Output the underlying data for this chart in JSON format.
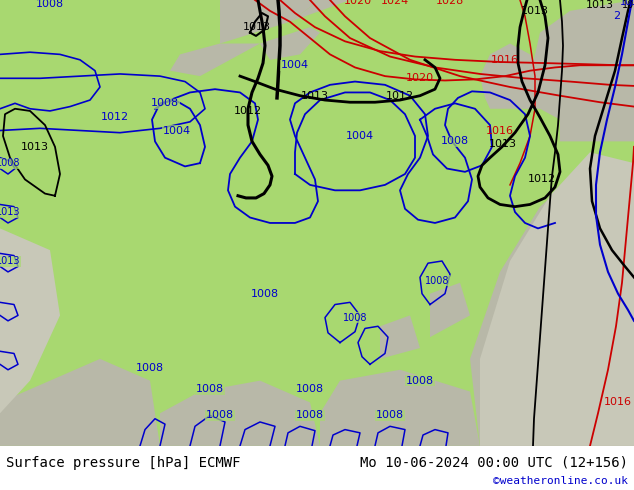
{
  "title_left": "Surface pressure [hPa] ECMWF",
  "title_right": "Mo 10-06-2024 00:00 UTC (12+156)",
  "copyright": "©weatheronline.co.uk",
  "bg_green": "#a8d870",
  "bg_gray": "#b8b8a8",
  "bg_lightgray": "#c8c8b8",
  "sea_gray": "#c0c8c0",
  "blue_col": "#0000cc",
  "red_col": "#cc0000",
  "black_col": "#000000",
  "bottom_bar_color": "#ffffff",
  "text_color": "#000000",
  "blue_text_color": "#0000cc",
  "font_size_title": 10,
  "font_size_copyright": 8,
  "font_size_label": 8
}
